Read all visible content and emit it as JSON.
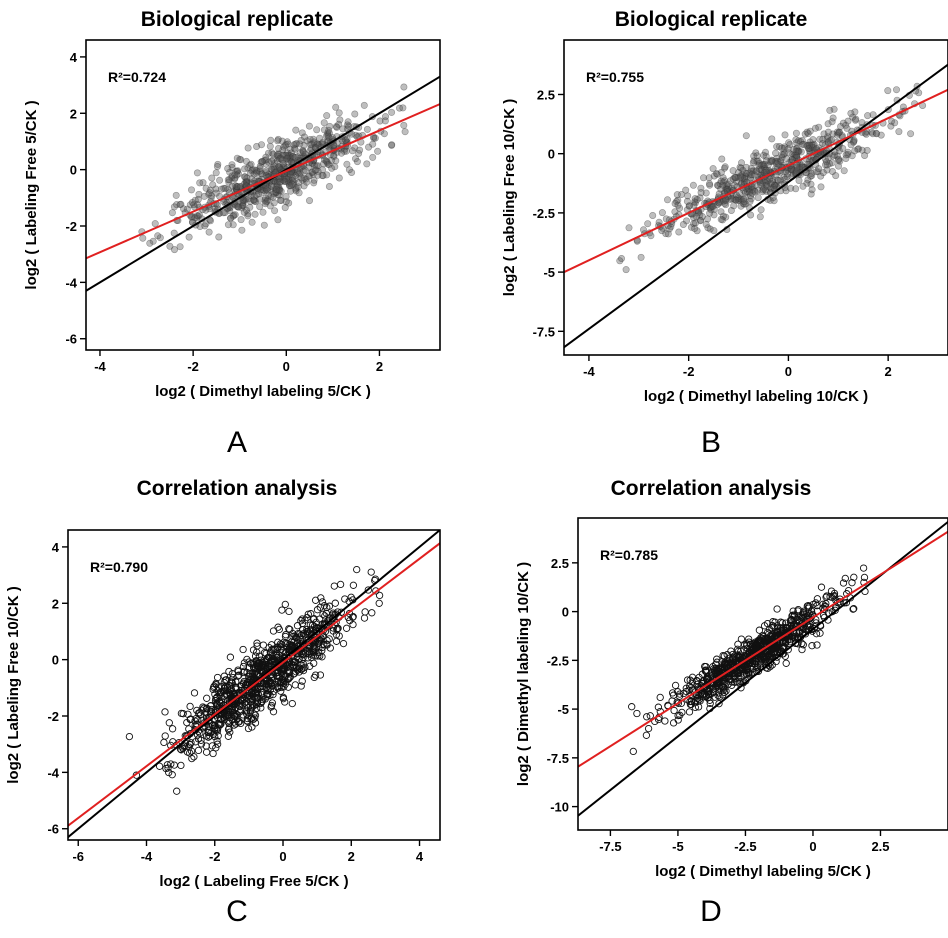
{
  "panels": [
    {
      "label": "A",
      "title": "Biological replicate",
      "r2": "0.724"
    },
    {
      "label": "B",
      "title": "Biological replicate",
      "r2": "0.755"
    },
    {
      "label": "C",
      "title": "Correlation analysis",
      "r2": "0.790"
    },
    {
      "label": "D",
      "title": "Correlation analysis",
      "r2": "0.785"
    }
  ],
  "chart_data": [
    {
      "type": "scatter",
      "title": "Biological replicate",
      "xlabel": "log2 ( Dimethyl labeling 5/CK )",
      "ylabel": "log2 ( Labeling Free 5/CK )",
      "annotation": "R²=0.724",
      "xlim": [
        -4.3,
        3.3
      ],
      "ylim": [
        -6.4,
        4.6
      ],
      "xticks": [
        -4,
        -2,
        0,
        2
      ],
      "yticks": [
        -6,
        -4,
        -2,
        0,
        2,
        4
      ],
      "grid": false,
      "marker": "filled-gray",
      "lines": [
        {
          "name": "identity",
          "color": "#000000",
          "slope": 1,
          "intercept": 0
        },
        {
          "name": "fit",
          "color": "#e02020",
          "slope": 0.72,
          "intercept": -0.05
        }
      ],
      "n_points": 700,
      "spread": 0.55,
      "x_range": [
        -3.6,
        2.6
      ]
    },
    {
      "type": "scatter",
      "title": "Biological replicate",
      "xlabel": "log2 ( Dimethyl labeling 10/CK )",
      "ylabel": "log2 ( Labeling Free 10/CK )",
      "annotation": "R²=0.755",
      "xlim": [
        -4.5,
        3.2
      ],
      "ylim": [
        -8.5,
        4.8
      ],
      "xticks": [
        -4,
        -2,
        0,
        2
      ],
      "yticks": [
        -7.5,
        -5,
        -2.5,
        0,
        2.5
      ],
      "grid": false,
      "marker": "filled-gray",
      "lines": [
        {
          "name": "identity",
          "color": "#000000",
          "slope": 1.55,
          "intercept": -1.2
        },
        {
          "name": "fit",
          "color": "#e02020",
          "slope": 1.0,
          "intercept": -0.5
        }
      ],
      "n_points": 650,
      "spread": 0.6,
      "x_range": [
        -4.0,
        2.7
      ]
    },
    {
      "type": "scatter",
      "title": "Correlation analysis",
      "xlabel": "log2 ( Labeling Free 5/CK )",
      "ylabel": "log2 ( Labeling Free 10/CK )",
      "annotation": "R²=0.790",
      "xlim": [
        -6.3,
        4.6
      ],
      "ylim": [
        -6.4,
        4.6
      ],
      "xticks": [
        -6,
        -4,
        -2,
        0,
        2,
        4
      ],
      "yticks": [
        -6,
        -4,
        -2,
        0,
        2,
        4
      ],
      "grid": false,
      "marker": "open-circle",
      "lines": [
        {
          "name": "identity",
          "color": "#000000",
          "slope": 1,
          "intercept": 0
        },
        {
          "name": "fit",
          "color": "#e02020",
          "slope": 0.92,
          "intercept": -0.1
        }
      ],
      "n_points": 900,
      "spread": 0.55,
      "x_range": [
        -4.6,
        2.9
      ]
    },
    {
      "type": "scatter",
      "title": "Correlation analysis",
      "xlabel": "log2 ( Dimethyl labeling 5/CK )",
      "ylabel": "log2 ( Dimethyl labeling 10/CK )",
      "annotation": "R²=0.785",
      "xlim": [
        -8.7,
        5.0
      ],
      "ylim": [
        -11.2,
        4.8
      ],
      "xticks": [
        -7.5,
        -5,
        -2.5,
        0,
        2.5
      ],
      "yticks": [
        -10,
        -7.5,
        -5,
        -2.5,
        0,
        2.5
      ],
      "grid": false,
      "marker": "open-circle",
      "lines": [
        {
          "name": "identity",
          "color": "#000000",
          "slope": 1.1,
          "intercept": -0.9
        },
        {
          "name": "fit",
          "color": "#e02020",
          "slope": 0.88,
          "intercept": -0.3
        }
      ],
      "n_points": 800,
      "spread": 0.5,
      "x_range": [
        -7.0,
        2.0
      ]
    }
  ]
}
